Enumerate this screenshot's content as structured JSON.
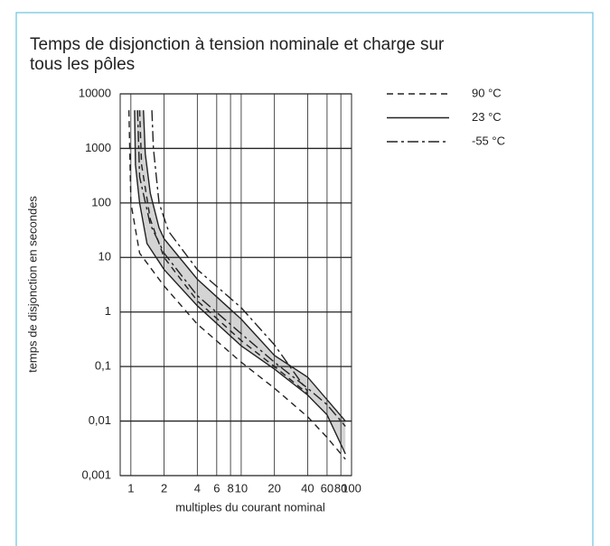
{
  "chart_data": {
    "type": "line",
    "title": "Temps de disjonction à tension nominale et charge sur tous les pôles",
    "xlabel": "multiples du courant nominal",
    "ylabel": "temps de disjonction en secondes",
    "xscale": "log",
    "yscale": "log",
    "grid": true,
    "legend": "upper right",
    "xlim": [
      0.8,
      100
    ],
    "ylim": [
      0.001,
      10000
    ],
    "xticks": [
      1,
      2,
      4,
      6,
      8,
      10,
      20,
      40,
      60,
      80,
      100
    ],
    "yticks": [
      {
        "value": 0.001,
        "label": "0,001"
      },
      {
        "value": 0.01,
        "label": "0,01"
      },
      {
        "value": 0.1,
        "label": "0,1"
      },
      1,
      10,
      100,
      1000,
      10000
    ],
    "band_color": "#d4d4d4",
    "series": [
      {
        "name": "90 °C",
        "color": "#222222",
        "dash": "dashed",
        "fill": false,
        "lower": {
          "x": [
            0.96,
            1.0,
            1.2,
            2,
            4,
            10,
            20,
            40,
            60,
            88
          ],
          "values": [
            5000,
            100,
            12,
            3,
            0.6,
            0.12,
            0.04,
            0.012,
            0.005,
            0.002
          ]
        },
        "upper": {
          "x": [
            1.2,
            1.25,
            1.5,
            2,
            4,
            10,
            20,
            40
          ],
          "values": [
            5000,
            500,
            50,
            10,
            1.6,
            0.3,
            0.1,
            0.032
          ]
        }
      },
      {
        "name": "23 °C",
        "color": "#222222",
        "dash": "solid",
        "fill": true,
        "lower": {
          "x": [
            1.08,
            1.1,
            1.2,
            1.4,
            2,
            4,
            10,
            20,
            40,
            60,
            88
          ],
          "values": [
            5000,
            500,
            100,
            18,
            6,
            1.3,
            0.24,
            0.09,
            0.03,
            0.013,
            0.0025
          ]
        },
        "upper": {
          "x": [
            1.3,
            1.35,
            1.5,
            1.8,
            2,
            4,
            10,
            20,
            40,
            88
          ],
          "values": [
            5000,
            800,
            150,
            35,
            22,
            4,
            0.74,
            0.16,
            0.064,
            0.01
          ]
        }
      },
      {
        "name": "-55 °C",
        "color": "#222222",
        "dash": "dashdot",
        "fill": false,
        "lower": {
          "x": [
            1.15,
            1.2,
            1.5,
            2,
            4,
            10,
            20,
            40,
            60,
            88
          ],
          "values": [
            5000,
            300,
            40,
            12,
            2,
            0.4,
            0.12,
            0.04,
            0.02,
            0.008
          ]
        },
        "upper": {
          "x": [
            1.55,
            1.6,
            1.8,
            2.2,
            4,
            10,
            20,
            40
          ],
          "values": [
            5000,
            1000,
            100,
            30,
            6,
            1.2,
            0.25,
            0.035
          ]
        }
      }
    ]
  }
}
